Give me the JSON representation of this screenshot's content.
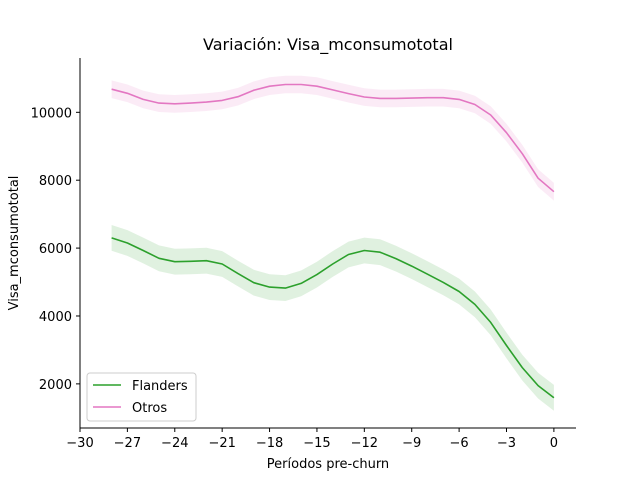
{
  "chart_data": {
    "type": "line",
    "title": "Variación: Visa_mconsumototal",
    "xlabel": "Períodos pre-churn",
    "ylabel": "Visa_mconsumototal",
    "xlim": [
      -30,
      1.4
    ],
    "ylim": [
      700,
      11600
    ],
    "x_ticks": [
      -30,
      -27,
      -24,
      -21,
      -18,
      -15,
      -12,
      -9,
      -6,
      -3,
      0
    ],
    "x_tick_labels": [
      "−30",
      "−27",
      "−24",
      "−21",
      "−18",
      "−15",
      "−12",
      "−9",
      "−6",
      "−3",
      "0"
    ],
    "y_ticks": [
      2000,
      4000,
      6000,
      8000,
      10000
    ],
    "y_tick_labels": [
      "2000",
      "4000",
      "6000",
      "8000",
      "10000"
    ],
    "grid": false,
    "legend_position": "lower-left",
    "x": [
      -28,
      -27,
      -26,
      -25,
      -24,
      -23,
      -22,
      -21,
      -20,
      -19,
      -18,
      -17,
      -16,
      -15,
      -14,
      -13,
      -12,
      -11,
      -10,
      -9,
      -8,
      -7,
      -6,
      -5,
      -4,
      -3,
      -2,
      -1,
      0
    ],
    "series": [
      {
        "name": "Flanders",
        "color": "#2ca02c",
        "values": [
          6300,
          6150,
          5930,
          5700,
          5600,
          5610,
          5630,
          5530,
          5250,
          4980,
          4850,
          4820,
          4960,
          5220,
          5530,
          5810,
          5930,
          5880,
          5690,
          5470,
          5230,
          4990,
          4720,
          4340,
          3810,
          3130,
          2480,
          1950,
          1590
        ],
        "band": 380
      },
      {
        "name": "Otros",
        "color": "#e377c2",
        "values": [
          10680,
          10560,
          10380,
          10270,
          10250,
          10270,
          10300,
          10350,
          10460,
          10650,
          10770,
          10820,
          10820,
          10770,
          10660,
          10550,
          10450,
          10410,
          10410,
          10420,
          10430,
          10430,
          10380,
          10230,
          9920,
          9400,
          8780,
          8060,
          7660
        ],
        "band": 260
      }
    ]
  }
}
